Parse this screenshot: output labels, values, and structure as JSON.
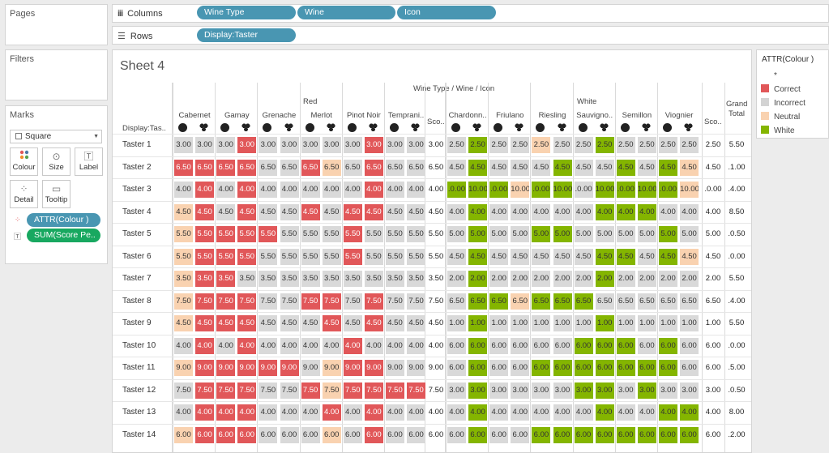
{
  "panels": {
    "pages": "Pages",
    "filters": "Filters",
    "marks": "Marks"
  },
  "shelves": {
    "columns_label": "Columns",
    "rows_label": "Rows",
    "columns_pills": [
      "Wine Type",
      "Wine",
      "Icon"
    ],
    "rows_pills": [
      "Display:Taster"
    ]
  },
  "marks": {
    "mark_type": "Square",
    "buttons": [
      {
        "label": "Colour",
        "icon": "colour-icon"
      },
      {
        "label": "Size",
        "icon": "size-icon"
      },
      {
        "label": "Label",
        "icon": "label-icon"
      },
      {
        "label": "Detail",
        "icon": "detail-icon"
      },
      {
        "label": "Tooltip",
        "icon": "tooltip-icon"
      }
    ],
    "pills": [
      "ATTR(Colour )",
      "SUM(Score Pe.."
    ]
  },
  "sheet": {
    "title": "Sheet 4",
    "header_title": "Wine Type / Wine / Icon",
    "row_header": "Display:Tas..",
    "groups": [
      "Red",
      "White"
    ],
    "red_wines": [
      "Cabernet",
      "Gamay",
      "Grenache",
      "Merlot",
      "Pinot Noir",
      "Temprani.."
    ],
    "white_wines": [
      "Chardonn..",
      "Friulano",
      "Riesling",
      "Sauvigno..",
      "Semillon",
      "Viognier"
    ],
    "score_label": "Sco..",
    "grand_total": "Grand Total",
    "tasters": [
      "Taster 1",
      "Taster 2",
      "Taster 3",
      "Taster 4",
      "Taster 5",
      "Taster 6",
      "Taster 7",
      "Taster 8",
      "Taster 9",
      "Taster 10",
      "Taster 11",
      "Taster 12",
      "Taster 13",
      "Taster 14"
    ],
    "rows": [
      {
        "red": [
          "3.00",
          "3.00",
          "3.00",
          "3.00",
          "3.00",
          "3.00",
          "3.00",
          "3.00",
          "3.00",
          "3.00",
          "3.00",
          "3.00"
        ],
        "red_c": "IIICIIIIICII",
        "rs": "3.00",
        "white": [
          "2.50",
          "2.50",
          "2.50",
          "2.50",
          "2.50",
          "2.50",
          "2.50",
          "2.50",
          "2.50",
          "2.50",
          "2.50",
          "2.50"
        ],
        "white_c": "IWIINIIWIIII",
        "ws": "2.50",
        "gt": "5.50"
      },
      {
        "red": [
          "6.50",
          "6.50",
          "6.50",
          "6.50",
          "6.50",
          "6.50",
          "6.50",
          "6.50",
          "6.50",
          "6.50",
          "6.50",
          "6.50"
        ],
        "red_c": "CCCCIICNICII",
        "rs": "6.50",
        "white": [
          "4.50",
          "4.50",
          "4.50",
          "4.50",
          "4.50",
          "4.50",
          "4.50",
          "4.50",
          "4.50",
          "4.50",
          "4.50",
          "4.50"
        ],
        "white_c": "IWIIIWIIWIWN",
        "ws": "4.50",
        "gt": ".1.00"
      },
      {
        "red": [
          "4.00",
          "4.00",
          "4.00",
          "4.00",
          "4.00",
          "4.00",
          "4.00",
          "4.00",
          "4.00",
          "4.00",
          "4.00",
          "4.00"
        ],
        "red_c": "ICICIIIIICII",
        "rs": "4.00",
        "white": [
          ".0.00",
          "10.00",
          ".0.00",
          "10.00",
          ".0.00",
          "10.00",
          ".0.00",
          "10.00",
          ".0.00",
          "10.00",
          ".0.00",
          "10.00"
        ],
        "white_c": "WWWNWWIWWWWN",
        "ws": ".0.00",
        "gt": ".4.00"
      },
      {
        "red": [
          "4.50",
          "4.50",
          "4.50",
          "4.50",
          "4.50",
          "4.50",
          "4.50",
          "4.50",
          "4.50",
          "4.50",
          "4.50",
          "4.50"
        ],
        "red_c": "NCICIICICCII",
        "rs": "4.50",
        "white": [
          "4.00",
          "4.00",
          "4.00",
          "4.00",
          "4.00",
          "4.00",
          "4.00",
          "4.00",
          "4.00",
          "4.00",
          "4.00",
          "4.00"
        ],
        "white_c": "IWIIIIIWWWII",
        "ws": "4.00",
        "gt": "8.50"
      },
      {
        "red": [
          "5.50",
          "5.50",
          "5.50",
          "5.50",
          "5.50",
          "5.50",
          "5.50",
          "5.50",
          "5.50",
          "5.50",
          "5.50",
          "5.50"
        ],
        "red_c": "NCCCCIIICIII",
        "rs": "5.50",
        "white": [
          "5.00",
          "5.00",
          "5.00",
          "5.00",
          "5.00",
          "5.00",
          "5.00",
          "5.00",
          "5.00",
          "5.00",
          "5.00",
          "5.00"
        ],
        "white_c": "IWIIWWIIIIWI",
        "ws": "5.00",
        "gt": ".0.50"
      },
      {
        "red": [
          "5.50",
          "5.50",
          "5.50",
          "5.50",
          "5.50",
          "5.50",
          "5.50",
          "5.50",
          "5.50",
          "5.50",
          "5.50",
          "5.50"
        ],
        "red_c": "NCCCIIIICIII",
        "rs": "5.50",
        "white": [
          "4.50",
          "4.50",
          "4.50",
          "4.50",
          "4.50",
          "4.50",
          "4.50",
          "4.50",
          "4.50",
          "4.50",
          "4.50",
          "4.50"
        ],
        "white_c": "IWIIIIIWWIWN",
        "ws": "4.50",
        "gt": ".0.00"
      },
      {
        "red": [
          "3.50",
          "3.50",
          "3.50",
          "3.50",
          "3.50",
          "3.50",
          "3.50",
          "3.50",
          "3.50",
          "3.50",
          "3.50",
          "3.50"
        ],
        "red_c": "NCCIIIIIIIII",
        "rs": "3.50",
        "white": [
          "2.00",
          "2.00",
          "2.00",
          "2.00",
          "2.00",
          "2.00",
          "2.00",
          "2.00",
          "2.00",
          "2.00",
          "2.00",
          "2.00"
        ],
        "white_c": "IWIIIIIWIIII",
        "ws": "2.00",
        "gt": "5.50"
      },
      {
        "red": [
          "7.50",
          "7.50",
          "7.50",
          "7.50",
          "7.50",
          "7.50",
          "7.50",
          "7.50",
          "7.50",
          "7.50",
          "7.50",
          "7.50"
        ],
        "red_c": "NCCCIICCICII",
        "rs": "7.50",
        "white": [
          "6.50",
          "6.50",
          "6.50",
          "6.50",
          "6.50",
          "6.50",
          "6.50",
          "6.50",
          "6.50",
          "6.50",
          "6.50",
          "6.50"
        ],
        "white_c": "IWWNWWWIIIII",
        "ws": "6.50",
        "gt": ".4.00"
      },
      {
        "red": [
          "4.50",
          "4.50",
          "4.50",
          "4.50",
          "4.50",
          "4.50",
          "4.50",
          "4.50",
          "4.50",
          "4.50",
          "4.50",
          "4.50"
        ],
        "red_c": "NCCCIIICICII",
        "rs": "4.50",
        "white": [
          "1.00",
          "1.00",
          "1.00",
          "1.00",
          "1.00",
          "1.00",
          "1.00",
          "1.00",
          "1.00",
          "1.00",
          "1.00",
          "1.00"
        ],
        "white_c": "IWIIIIIWIIII",
        "ws": "1.00",
        "gt": "5.50"
      },
      {
        "red": [
          "4.00",
          "4.00",
          "4.00",
          "4.00",
          "4.00",
          "4.00",
          "4.00",
          "4.00",
          "4.00",
          "4.00",
          "4.00",
          "4.00"
        ],
        "red_c": "ICICIIIICIII",
        "rs": "4.00",
        "white": [
          "6.00",
          "6.00",
          "6.00",
          "6.00",
          "6.00",
          "6.00",
          "6.00",
          "6.00",
          "6.00",
          "6.00",
          "6.00",
          "6.00"
        ],
        "white_c": "IWIIIIWWWIWI",
        "ws": "6.00",
        "gt": ".0.00"
      },
      {
        "red": [
          "9.00",
          "9.00",
          "9.00",
          "9.00",
          "9.00",
          "9.00",
          "9.00",
          "9.00",
          "9.00",
          "9.00",
          "9.00",
          "9.00"
        ],
        "red_c": "NCCCCCINCCII",
        "rs": "9.00",
        "white": [
          "6.00",
          "6.00",
          "6.00",
          "6.00",
          "6.00",
          "6.00",
          "6.00",
          "6.00",
          "6.00",
          "6.00",
          "6.00",
          "6.00"
        ],
        "white_c": "IWIIWWWWWWWI",
        "ws": "6.00",
        "gt": ".5.00"
      },
      {
        "red": [
          "7.50",
          "7.50",
          "7.50",
          "7.50",
          "7.50",
          "7.50",
          "7.50",
          "7.50",
          "7.50",
          "7.50",
          "7.50",
          "7.50"
        ],
        "red_c": "ICCCIICNCCCC",
        "rs": "7.50",
        "white": [
          "3.00",
          "3.00",
          "3.00",
          "3.00",
          "3.00",
          "3.00",
          "3.00",
          "3.00",
          "3.00",
          "3.00",
          "3.00",
          "3.00"
        ],
        "white_c": "IWIIIIWWIWII",
        "ws": "3.00",
        "gt": ".0.50"
      },
      {
        "red": [
          "4.00",
          "4.00",
          "4.00",
          "4.00",
          "4.00",
          "4.00",
          "4.00",
          "4.00",
          "4.00",
          "4.00",
          "4.00",
          "4.00"
        ],
        "red_c": "ICCCIIICICII",
        "rs": "4.00",
        "white": [
          "4.00",
          "4.00",
          "4.00",
          "4.00",
          "4.00",
          "4.00",
          "4.00",
          "4.00",
          "4.00",
          "4.00",
          "4.00",
          "4.00"
        ],
        "white_c": "IWIIIIIWIIWW",
        "ws": "4.00",
        "gt": "8.00"
      },
      {
        "red": [
          "6.00",
          "6.00",
          "6.00",
          "6.00",
          "6.00",
          "6.00",
          "6.00",
          "6.00",
          "6.00",
          "6.00",
          "6.00",
          "6.00"
        ],
        "red_c": "NCCCIIINICII",
        "rs": "6.00",
        "white": [
          "6.00",
          "6.00",
          "6.00",
          "6.00",
          "6.00",
          "6.00",
          "6.00",
          "6.00",
          "6.00",
          "6.00",
          "6.00",
          "6.00"
        ],
        "white_c": "IWIIWWWWWWWW",
        "ws": "6.00",
        "gt": ".2.00"
      }
    ]
  },
  "legend": {
    "title": "ATTR(Colour )",
    "items": [
      {
        "label": "*",
        "color": "#ffffff"
      },
      {
        "label": "Correct",
        "color": "#e15759"
      },
      {
        "label": "Incorrect",
        "color": "#d3d3d3"
      },
      {
        "label": "Neutral",
        "color": "#f9d2b0"
      },
      {
        "label": "White",
        "color": "#84b500"
      }
    ]
  },
  "colors": {
    "C": "#e15759",
    "I": "#d9d9d9",
    "N": "#f9d2b0",
    "W": "#84b500",
    "pill": "#4996b2",
    "pill_green": "#18a860"
  }
}
